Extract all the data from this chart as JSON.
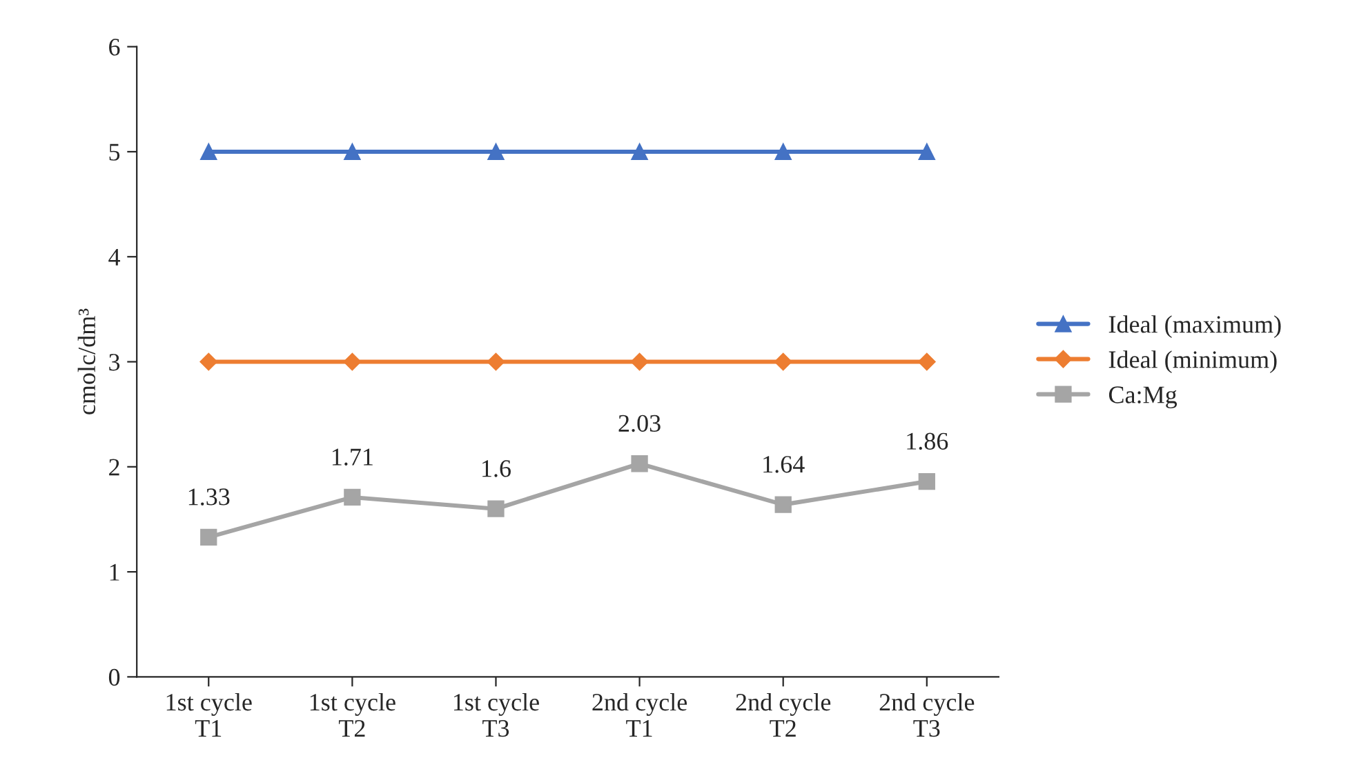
{
  "chart_data": {
    "type": "line",
    "ylabel": "cmolc/dm³",
    "categories": [
      "1st cycle\nT1",
      "1st cycle\nT2",
      "1st cycle\nT3",
      "2nd cycle\nT1",
      "2nd cycle\nT2",
      "2nd cycle\nT3"
    ],
    "series": [
      {
        "name": "Ideal (maximum)",
        "color": "#4472c4",
        "marker": "triangle",
        "values": [
          5,
          5,
          5,
          5,
          5,
          5
        ]
      },
      {
        "name": "Ideal (minimum)",
        "color": "#ed7d31",
        "marker": "diamond",
        "values": [
          3,
          3,
          3,
          3,
          3,
          3
        ]
      },
      {
        "name": "Ca:Mg",
        "color": "#a5a5a5",
        "marker": "square",
        "values": [
          1.33,
          1.71,
          1.6,
          2.03,
          1.64,
          1.86
        ],
        "value_labels": [
          "1.33",
          "1.71",
          "1.6",
          "2.03",
          "1.64",
          "1.86"
        ]
      }
    ],
    "ylim": [
      0,
      6
    ],
    "yticks": [
      0,
      1,
      2,
      3,
      4,
      5,
      6
    ],
    "grid": false,
    "legend": "right"
  }
}
